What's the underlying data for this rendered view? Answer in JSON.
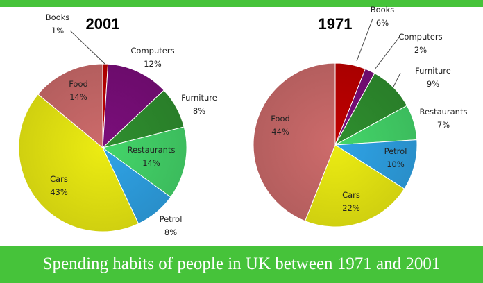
{
  "caption": "Spending habits of people in UK between 1971 and 2001",
  "chart_data": [
    {
      "type": "pie",
      "title": "2001",
      "slices": [
        {
          "label": "Books",
          "value": 1,
          "display": "1%",
          "color": "#c00000"
        },
        {
          "label": "Computers",
          "value": 12,
          "display": "12%",
          "color": "#7b0e7b"
        },
        {
          "label": "Furniture",
          "value": 8,
          "display": "8%",
          "color": "#2f8f2f"
        },
        {
          "label": "Restaurants",
          "value": 14,
          "display": "14%",
          "color": "#44d66a"
        },
        {
          "label": "Petrol",
          "value": 8,
          "display": "8%",
          "color": "#2fa3e6"
        },
        {
          "label": "Cars",
          "value": 43,
          "display": "43%",
          "color": "#ecec12"
        },
        {
          "label": "Food",
          "value": 14,
          "display": "14%",
          "color": "#cd6b6b"
        }
      ]
    },
    {
      "type": "pie",
      "title": "1971",
      "slices": [
        {
          "label": "Books",
          "value": 6,
          "display": "6%",
          "color": "#c00000"
        },
        {
          "label": "Computers",
          "value": 2,
          "display": "2%",
          "color": "#7b0e7b"
        },
        {
          "label": "Furniture",
          "value": 9,
          "display": "9%",
          "color": "#2f8f2f"
        },
        {
          "label": "Restaurants",
          "value": 7,
          "display": "7%",
          "color": "#44d66a"
        },
        {
          "label": "Petrol",
          "value": 10,
          "display": "10%",
          "color": "#2fa3e6"
        },
        {
          "label": "Cars",
          "value": 22,
          "display": "22%",
          "color": "#ecec12"
        },
        {
          "label": "Food",
          "value": 44,
          "display": "44%",
          "color": "#cd6b6b"
        }
      ]
    }
  ]
}
